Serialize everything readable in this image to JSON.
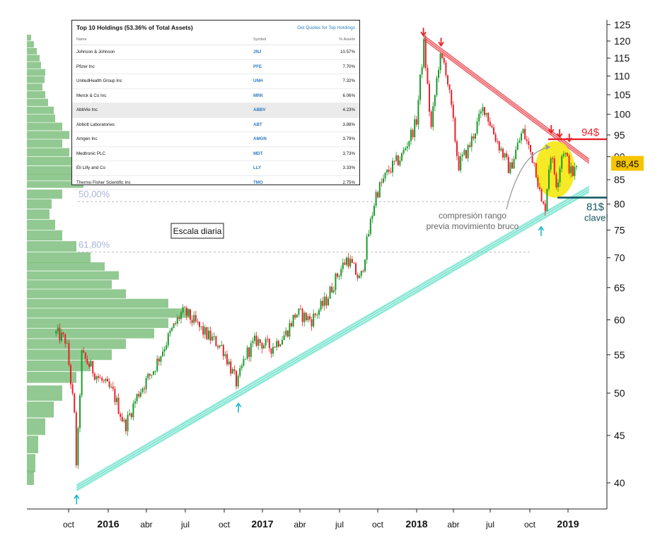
{
  "chart_data": {
    "type": "candlestick",
    "title": "",
    "scale_label": "Escala diaria",
    "y_scale": "log",
    "ylim": [
      38,
      125
    ],
    "y_ticks": [
      40,
      45,
      50,
      55,
      60,
      65,
      70,
      75,
      80,
      85,
      90,
      95,
      100,
      105,
      110,
      115,
      120,
      125
    ],
    "x_tick_labels": [
      "oct",
      "2016",
      "abr",
      "jul",
      "oct",
      "2017",
      "abr",
      "jul",
      "oct",
      "2018",
      "abr",
      "jul",
      "oct",
      "2019"
    ],
    "x_tick_bold": [
      false,
      true,
      false,
      false,
      false,
      true,
      false,
      false,
      false,
      true,
      false,
      false,
      false,
      true
    ],
    "price_path": [
      [
        "2015-09-01",
        58
      ],
      [
        "2015-09-25",
        57
      ],
      [
        "2015-10-15",
        47
      ],
      [
        "2015-10-20",
        41
      ],
      [
        "2015-11-01",
        55
      ],
      [
        "2015-12-10",
        52
      ],
      [
        "2016-01-15",
        50
      ],
      [
        "2016-02-12",
        46
      ],
      [
        "2016-03-15",
        50
      ],
      [
        "2016-04-20",
        53
      ],
      [
        "2016-05-30",
        58
      ],
      [
        "2016-06-25",
        61
      ],
      [
        "2016-07-05",
        61
      ],
      [
        "2016-08-20",
        58
      ],
      [
        "2016-10-01",
        56
      ],
      [
        "2016-11-05",
        51
      ],
      [
        "2016-11-25",
        55
      ],
      [
        "2016-12-20",
        57
      ],
      [
        "2017-01-25",
        56
      ],
      [
        "2017-03-01",
        58
      ],
      [
        "2017-03-25",
        61
      ],
      [
        "2017-05-01",
        60
      ],
      [
        "2017-06-05",
        63
      ],
      [
        "2017-07-01",
        67
      ],
      [
        "2017-07-25",
        70
      ],
      [
        "2017-08-25",
        66
      ],
      [
        "2017-09-15",
        75
      ],
      [
        "2017-10-01",
        82
      ],
      [
        "2017-11-01",
        87
      ],
      [
        "2017-12-01",
        90
      ],
      [
        "2018-01-05",
        98
      ],
      [
        "2018-01-23",
        119
      ],
      [
        "2018-02-09",
        96
      ],
      [
        "2018-03-01",
        115
      ],
      [
        "2018-03-15",
        113
      ],
      [
        "2018-04-05",
        96
      ],
      [
        "2018-04-15",
        88
      ],
      [
        "2018-05-10",
        92
      ],
      [
        "2018-06-15",
        102
      ],
      [
        "2018-07-10",
        95
      ],
      [
        "2018-08-15",
        87
      ],
      [
        "2018-09-15",
        96
      ],
      [
        "2018-10-15",
        88
      ],
      [
        "2018-10-30",
        80
      ],
      [
        "2018-11-07",
        79
      ],
      [
        "2018-11-20",
        91
      ],
      [
        "2018-12-05",
        84
      ],
      [
        "2018-12-20",
        92
      ],
      [
        "2019-01-10",
        86
      ],
      [
        "2019-01-25",
        88
      ]
    ],
    "volume_profile": [
      [
        40.5,
        1.0
      ],
      [
        42,
        1.2
      ],
      [
        44,
        1.6
      ],
      [
        46,
        2.6
      ],
      [
        48,
        3.8
      ],
      [
        50,
        5.0
      ],
      [
        52,
        7.0
      ],
      [
        53.5,
        9.0
      ],
      [
        55,
        12.0
      ],
      [
        56.5,
        14.0
      ],
      [
        58,
        18.0
      ],
      [
        59.5,
        20.0
      ],
      [
        61,
        23.0
      ],
      [
        62.5,
        20.0
      ],
      [
        64,
        14.0
      ],
      [
        65.5,
        12.0
      ],
      [
        67,
        13.0
      ],
      [
        68.5,
        11.0
      ],
      [
        70,
        9.0
      ],
      [
        72,
        7.0
      ],
      [
        74,
        5.0
      ],
      [
        76,
        4.0
      ],
      [
        78,
        3.2
      ],
      [
        80,
        3.5
      ],
      [
        82,
        5.0
      ],
      [
        84,
        8.0
      ],
      [
        85.5,
        10.0
      ],
      [
        87,
        7.0
      ],
      [
        89,
        8.0
      ],
      [
        91,
        6.0
      ],
      [
        93,
        5.0
      ],
      [
        95,
        6.0
      ],
      [
        97,
        5.0
      ],
      [
        99,
        4.0
      ],
      [
        101,
        3.8
      ],
      [
        103,
        3.0
      ],
      [
        105,
        2.6
      ],
      [
        107,
        2.2
      ],
      [
        109,
        2.5
      ],
      [
        111,
        2.6
      ],
      [
        113,
        2.0
      ],
      [
        115,
        1.8
      ],
      [
        117,
        1.4
      ],
      [
        119,
        1.0
      ],
      [
        121,
        0.6
      ]
    ],
    "support_line": [
      [
        "2015-10-20",
        39.5
      ],
      [
        "2019-02-20",
        83
      ]
    ],
    "resistance_line": [
      [
        "2018-01-23",
        121
      ],
      [
        "2019-02-20",
        89
      ]
    ],
    "fib_levels": [
      {
        "label": "50,00%",
        "value": 80.5
      },
      {
        "label": "61,80%",
        "value": 71
      }
    ],
    "level_94": {
      "label": "94$",
      "value": 94,
      "color": "#e8212a"
    },
    "level_81": {
      "label": "81$",
      "sublabel": "clave!",
      "value": 81.3,
      "color": "#0d5560"
    },
    "current_price": {
      "label": "88,45",
      "value": 88.45,
      "color": "#f5c400"
    },
    "annotation": {
      "line1": "compresión rango",
      "line2": "previa movimiento bruco"
    },
    "down_arrows": [
      [
        "2018-01-22",
        121
      ],
      [
        "2018-03-05",
        118
      ],
      [
        "2018-11-22",
        95
      ],
      [
        "2018-12-12",
        94
      ],
      [
        "2019-01-04",
        93
      ]
    ],
    "up_arrows": [
      [
        "2015-10-20",
        39
      ],
      [
        "2016-11-08",
        49
      ],
      [
        "2018-10-29",
        76
      ]
    ],
    "colors": {
      "up": "#1a9a2a",
      "down": "#e8212a",
      "profile": "#7fbf7f",
      "support": "#3ad6b8",
      "resistance": "#e8212a",
      "highlight": "#f5e600"
    }
  },
  "holdings": {
    "title": "Top 10 Holdings (53.36% of Total Assets)",
    "link": "Get Quotes for Top Holdings",
    "columns": [
      "Name",
      "Symbol",
      "% Assets"
    ],
    "rows": [
      {
        "name": "Johnson & Johnson",
        "symbol": "JNJ",
        "pct": "10.57%"
      },
      {
        "name": "Pfizer Inc",
        "symbol": "PFE",
        "pct": "7.70%"
      },
      {
        "name": "UnitedHealth Group Inc",
        "symbol": "UNH",
        "pct": "7.32%"
      },
      {
        "name": "Merck & Co Inc",
        "symbol": "MRK",
        "pct": "6.06%"
      },
      {
        "name": "AbbVie Inc",
        "symbol": "ABBV",
        "pct": "4.23%"
      },
      {
        "name": "Abbott Laboratories",
        "symbol": "ABT",
        "pct": "3.88%"
      },
      {
        "name": "Amgen Inc",
        "symbol": "AMGN",
        "pct": "3.79%"
      },
      {
        "name": "Medtronic PLC",
        "symbol": "MDT",
        "pct": "3.73%"
      },
      {
        "name": "Eli Lilly and Co",
        "symbol": "LLY",
        "pct": "3.33%"
      },
      {
        "name": "Thermo Fisher Scientific Inc",
        "symbol": "TMO",
        "pct": "2.75%"
      }
    ]
  }
}
